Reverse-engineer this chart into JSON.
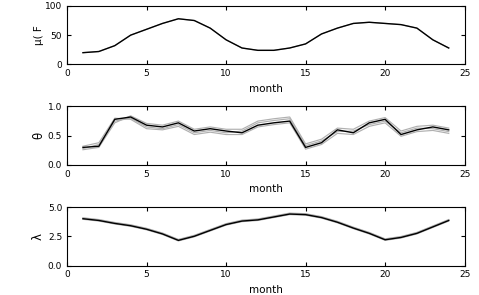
{
  "months": [
    1,
    2,
    3,
    4,
    5,
    6,
    7,
    8,
    9,
    10,
    11,
    12,
    13,
    14,
    15,
    16,
    17,
    18,
    19,
    20,
    21,
    22,
    23,
    24
  ],
  "mu_black": [
    20,
    22,
    32,
    50,
    60,
    70,
    78,
    75,
    62,
    42,
    28,
    24,
    24,
    28,
    35,
    52,
    62,
    70,
    72,
    70,
    68,
    62,
    42,
    28
  ],
  "mu_gray": [
    20,
    22,
    32,
    50,
    60,
    70,
    78,
    75,
    62,
    42,
    28,
    24,
    24,
    28,
    35,
    52,
    62,
    70,
    72,
    70,
    68,
    62,
    42,
    28
  ],
  "theta_black": [
    0.3,
    0.32,
    0.78,
    0.82,
    0.68,
    0.65,
    0.72,
    0.58,
    0.62,
    0.58,
    0.55,
    0.68,
    0.72,
    0.75,
    0.3,
    0.38,
    0.6,
    0.55,
    0.72,
    0.78,
    0.52,
    0.6,
    0.65,
    0.6
  ],
  "theta_gray1": [
    0.28,
    0.35,
    0.75,
    0.8,
    0.65,
    0.62,
    0.69,
    0.55,
    0.59,
    0.55,
    0.58,
    0.72,
    0.76,
    0.79,
    0.33,
    0.41,
    0.57,
    0.58,
    0.69,
    0.75,
    0.55,
    0.63,
    0.62,
    0.57
  ],
  "theta_gray2": [
    0.32,
    0.38,
    0.8,
    0.78,
    0.62,
    0.6,
    0.66,
    0.52,
    0.56,
    0.52,
    0.52,
    0.65,
    0.69,
    0.72,
    0.27,
    0.35,
    0.54,
    0.52,
    0.66,
    0.72,
    0.49,
    0.57,
    0.59,
    0.54
  ],
  "theta_gray3": [
    0.26,
    0.3,
    0.72,
    0.84,
    0.71,
    0.68,
    0.75,
    0.61,
    0.65,
    0.61,
    0.61,
    0.75,
    0.79,
    0.82,
    0.36,
    0.44,
    0.63,
    0.61,
    0.75,
    0.81,
    0.58,
    0.66,
    0.68,
    0.63
  ],
  "lambda_black": [
    4.0,
    3.85,
    3.6,
    3.4,
    3.1,
    2.7,
    2.15,
    2.5,
    3.0,
    3.5,
    3.8,
    3.9,
    4.15,
    4.4,
    4.35,
    4.1,
    3.7,
    3.2,
    2.75,
    2.2,
    2.4,
    2.75,
    3.3,
    3.85
  ],
  "lambda_gray1": [
    4.05,
    3.9,
    3.65,
    3.45,
    3.15,
    2.75,
    2.2,
    2.55,
    3.05,
    3.55,
    3.85,
    3.95,
    4.2,
    4.45,
    4.4,
    4.15,
    3.75,
    3.25,
    2.8,
    2.25,
    2.45,
    2.8,
    3.35,
    3.9
  ],
  "lambda_gray2": [
    3.95,
    3.8,
    3.55,
    3.35,
    3.05,
    2.65,
    2.1,
    2.45,
    2.95,
    3.45,
    3.75,
    3.85,
    4.1,
    4.35,
    4.3,
    4.05,
    3.65,
    3.15,
    2.7,
    2.15,
    2.35,
    2.7,
    3.25,
    3.8
  ],
  "lambda_gray3": [
    4.08,
    3.93,
    3.68,
    3.48,
    3.18,
    2.78,
    2.23,
    2.58,
    3.08,
    3.58,
    3.88,
    3.98,
    4.23,
    4.48,
    4.43,
    4.18,
    3.78,
    3.28,
    2.83,
    2.28,
    2.48,
    2.83,
    3.38,
    3.93
  ],
  "black_color": "#000000",
  "gray_color": "#b0b0b0",
  "xlabel": "month",
  "ylabel_mu": "μ( F",
  "ylabel_theta": "θ",
  "ylabel_lambda": "λ",
  "xlim": [
    0,
    25
  ],
  "xticks": [
    0,
    5,
    10,
    15,
    20,
    25
  ],
  "mu_ylim": [
    0,
    100
  ],
  "mu_yticks": [
    0,
    50,
    100
  ],
  "theta_ylim": [
    0,
    1
  ],
  "theta_yticks": [
    0,
    0.5,
    1
  ],
  "lambda_ylim": [
    0,
    5
  ],
  "lambda_yticks": [
    0,
    2.5,
    5
  ],
  "figsize": [
    4.79,
    2.95
  ],
  "dpi": 100
}
